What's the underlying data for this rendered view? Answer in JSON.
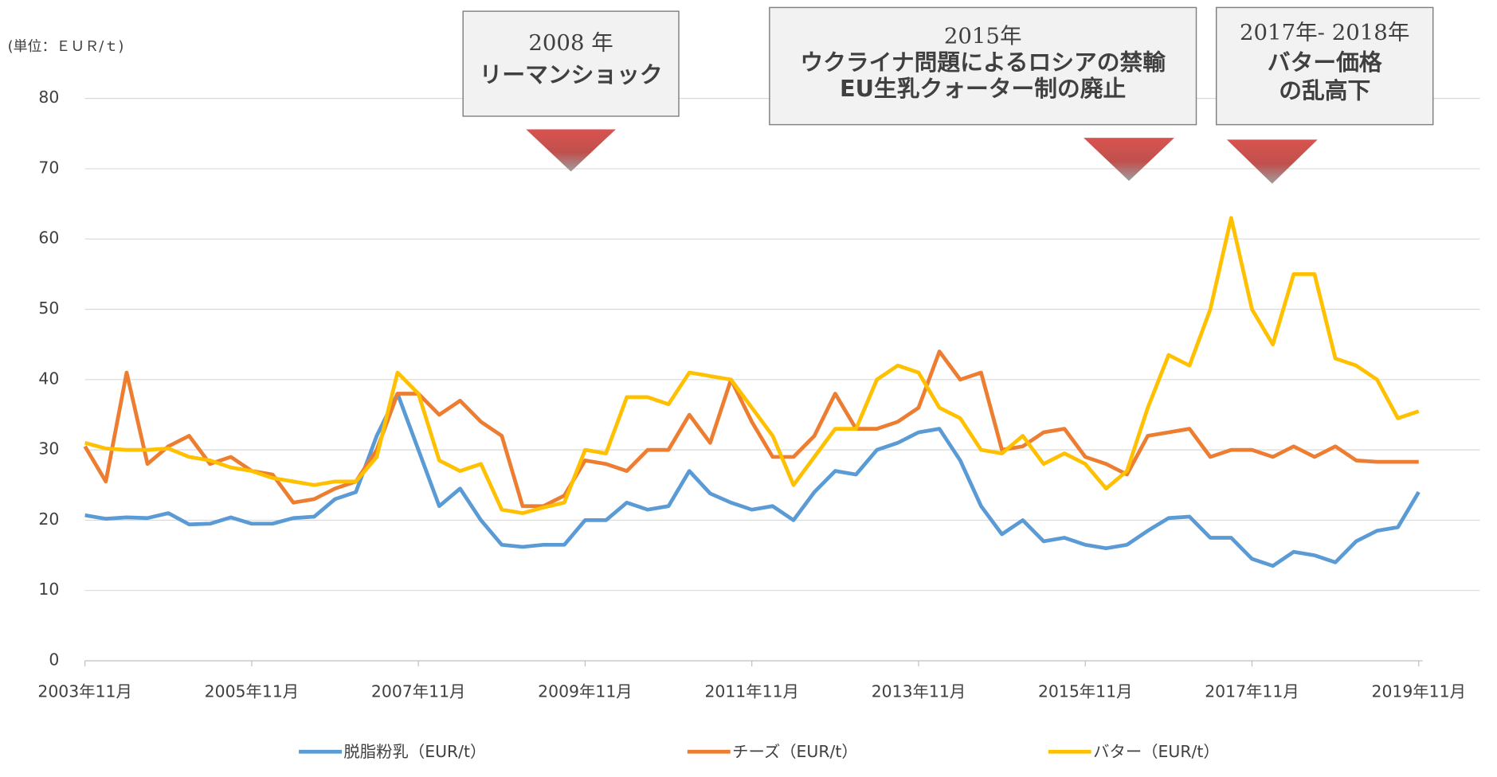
{
  "chart_data": {
    "type": "line",
    "unit_label": "(単位：ＥＵＲ/ｔ)",
    "x": [
      "2003-11",
      "2004-02",
      "2004-05",
      "2004-08",
      "2004-11",
      "2005-02",
      "2005-05",
      "2005-08",
      "2005-11",
      "2006-02",
      "2006-05",
      "2006-08",
      "2006-11",
      "2007-02",
      "2007-05",
      "2007-08",
      "2007-11",
      "2008-02",
      "2008-05",
      "2008-08",
      "2008-11",
      "2009-02",
      "2009-05",
      "2009-08",
      "2009-11",
      "2010-02",
      "2010-05",
      "2010-08",
      "2010-11",
      "2011-02",
      "2011-05",
      "2011-08",
      "2011-11",
      "2012-02",
      "2012-05",
      "2012-08",
      "2012-11",
      "2013-02",
      "2013-05",
      "2013-08",
      "2013-11",
      "2014-02",
      "2014-05",
      "2014-08",
      "2014-11",
      "2015-02",
      "2015-05",
      "2015-08",
      "2015-11",
      "2016-02",
      "2016-05",
      "2016-08",
      "2016-11",
      "2017-02",
      "2017-05",
      "2017-08",
      "2017-11",
      "2018-02",
      "2018-05",
      "2018-08",
      "2018-11",
      "2019-02",
      "2019-05",
      "2019-08",
      "2019-11"
    ],
    "series": [
      {
        "name": "脱脂粉乳（EUR/t）",
        "color": "#5b9bd5",
        "values": [
          20.7,
          20.2,
          20.4,
          20.3,
          21,
          19.4,
          19.5,
          20.4,
          19.5,
          19.5,
          20.3,
          20.5,
          23,
          24,
          32,
          38,
          30,
          22,
          24.5,
          20,
          16.5,
          16.2,
          16.5,
          16.5,
          20,
          20,
          22.5,
          21.5,
          22,
          27,
          23.8,
          22.5,
          21.5,
          22,
          20,
          24,
          27,
          26.5,
          30,
          31,
          32.5,
          33,
          28.5,
          22,
          18,
          20,
          17,
          17.5,
          16.5,
          16,
          16.5,
          18.5,
          20.3,
          20.5,
          17.5,
          17.5,
          14.5,
          13.5,
          15.5,
          15,
          14,
          17,
          18.5,
          19,
          24
        ]
      },
      {
        "name": "チーズ（EUR/t）",
        "color": "#ed7d31",
        "values": [
          30.5,
          25.5,
          41,
          28,
          30.5,
          32,
          28,
          29,
          27,
          26.5,
          22.5,
          23,
          24.5,
          25.5,
          30,
          38,
          38,
          35,
          37,
          34,
          32,
          22,
          22,
          23.5,
          28.5,
          28,
          27,
          30,
          30,
          35,
          31,
          40,
          34,
          29,
          29,
          32,
          38,
          33,
          33,
          34,
          36,
          44,
          40,
          41,
          30,
          30.5,
          32.5,
          33,
          29,
          28,
          26.5,
          32,
          32.5,
          33,
          29,
          30,
          30,
          29,
          30.5,
          29,
          30.5,
          28.5,
          28.3,
          28.3,
          28.3
        ]
      },
      {
        "name": "バター（EUR/t）",
        "color": "#ffc000",
        "values": [
          31,
          30.2,
          30,
          30,
          30.2,
          29,
          28.5,
          27.5,
          27,
          26,
          25.5,
          25,
          25.5,
          25.5,
          29,
          41,
          38,
          28.5,
          27,
          28,
          21.5,
          21,
          21.8,
          22.5,
          30,
          29.5,
          37.5,
          37.5,
          36.5,
          41,
          40.5,
          40,
          36,
          32,
          25,
          29,
          33,
          33,
          40,
          42,
          41,
          36,
          34.5,
          30,
          29.5,
          32,
          28,
          29.5,
          28,
          24.5,
          27,
          36,
          43.5,
          42,
          50,
          63,
          50,
          45,
          55,
          55,
          43,
          42,
          40,
          34.5,
          35.5
        ]
      }
    ],
    "xlim": [
      "2003-11",
      "2019-11"
    ],
    "xticks": [
      {
        "value": "2003-11",
        "label": "2003年11月"
      },
      {
        "value": "2005-11",
        "label": "2005年11月"
      },
      {
        "value": "2007-11",
        "label": "2007年11月"
      },
      {
        "value": "2009-11",
        "label": "2009年11月"
      },
      {
        "value": "2011-11",
        "label": "2011年11月"
      },
      {
        "value": "2013-11",
        "label": "2013年11月"
      },
      {
        "value": "2015-11",
        "label": "2015年11月"
      },
      {
        "value": "2017-11",
        "label": "2017年11月"
      },
      {
        "value": "2019-11",
        "label": "2019年11月"
      }
    ],
    "ylim": [
      0,
      80
    ],
    "yticks": [
      0,
      10,
      20,
      30,
      40,
      50,
      60,
      70,
      80
    ],
    "grid": true,
    "annotations": [
      {
        "lines": [
          "2008 年",
          "リーマンショック"
        ]
      },
      {
        "lines": [
          "2015年",
          "ウクライナ問題によるロシアの禁輸",
          "EU生乳クォーター制の廃止"
        ]
      },
      {
        "lines": [
          "2017年- 2018年",
          "バター価格",
          "の乱高下"
        ]
      }
    ]
  }
}
